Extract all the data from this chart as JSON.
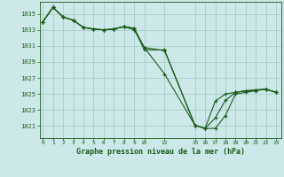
{
  "background_color": "#cce8e8",
  "grid_color": "#aacccc",
  "line_color": "#1a5c1a",
  "title": "Graphe pression niveau de la mer (hPa)",
  "title_color": "#1a5c1a",
  "ylim": [
    1019.5,
    1036.5
  ],
  "yticks": [
    1021,
    1023,
    1025,
    1027,
    1029,
    1031,
    1033,
    1035
  ],
  "xticks": [
    0,
    1,
    2,
    3,
    4,
    5,
    6,
    7,
    8,
    9,
    10,
    12,
    15,
    16,
    17,
    18,
    19,
    20,
    21,
    22,
    23
  ],
  "xlim": [
    -0.3,
    23.5
  ],
  "series": [
    {
      "x": [
        0,
        1,
        2,
        3,
        4,
        5,
        6,
        7,
        8,
        9,
        10,
        12,
        15,
        16,
        17,
        18,
        19,
        20,
        21,
        22,
        23
      ],
      "y": [
        1034.0,
        1035.8,
        1034.6,
        1034.2,
        1033.3,
        1033.1,
        1033.0,
        1033.1,
        1033.4,
        1033.2,
        1030.5,
        1030.5,
        1021.1,
        1020.7,
        1020.7,
        1022.3,
        1025.0,
        1025.2,
        1025.4,
        1025.6,
        1025.2
      ]
    },
    {
      "x": [
        0,
        1,
        2,
        3,
        4,
        5,
        6,
        7,
        8,
        9,
        10,
        12,
        15,
        16,
        17,
        18,
        19,
        20,
        21,
        22,
        23
      ],
      "y": [
        1034.0,
        1035.8,
        1034.6,
        1034.2,
        1033.3,
        1033.1,
        1033.0,
        1033.1,
        1033.4,
        1033.2,
        1030.8,
        1027.5,
        1021.1,
        1020.7,
        1022.0,
        1024.2,
        1025.2,
        1025.4,
        1025.5,
        1025.6,
        1025.2
      ]
    },
    {
      "x": [
        0,
        1,
        2,
        3,
        4,
        5,
        6,
        7,
        8,
        9,
        10,
        12,
        15,
        16,
        17,
        18,
        19,
        20,
        21,
        22,
        23
      ],
      "y": [
        1034.0,
        1035.8,
        1034.6,
        1034.2,
        1033.3,
        1033.1,
        1033.0,
        1033.1,
        1033.4,
        1033.0,
        1030.8,
        1030.4,
        1021.1,
        1020.7,
        1024.1,
        1025.0,
        1025.2,
        1025.4,
        1025.5,
        1025.6,
        1025.2
      ]
    }
  ]
}
